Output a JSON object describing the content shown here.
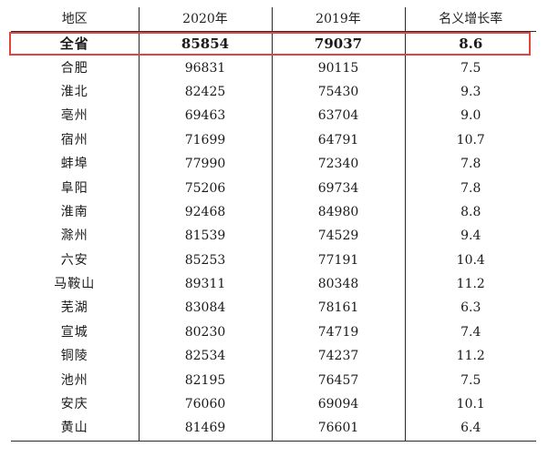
{
  "table": {
    "headers": [
      "地区",
      "2020年",
      "2019年",
      "名义增长率"
    ],
    "rows": [
      [
        "全省",
        "85854",
        "79037",
        "8.6"
      ],
      [
        "合肥",
        "96831",
        "90115",
        "7.5"
      ],
      [
        "淮北",
        "82425",
        "75430",
        "9.3"
      ],
      [
        "亳州",
        "69463",
        "63704",
        "9.0"
      ],
      [
        "宿州",
        "71699",
        "64791",
        "10.7"
      ],
      [
        "蚌埠",
        "77990",
        "72340",
        "7.8"
      ],
      [
        "阜阳",
        "75206",
        "69734",
        "7.8"
      ],
      [
        "淮南",
        "92468",
        "84980",
        "8.8"
      ],
      [
        "滁州",
        "81539",
        "74529",
        "9.4"
      ],
      [
        "六安",
        "85253",
        "77191",
        "10.4"
      ],
      [
        "马鞍山",
        "89311",
        "80348",
        "11.2"
      ],
      [
        "芜湖",
        "83084",
        "78161",
        "6.3"
      ],
      [
        "宣城",
        "80230",
        "74719",
        "7.4"
      ],
      [
        "铜陵",
        "82534",
        "74237",
        "11.2"
      ],
      [
        "池州",
        "82195",
        "76457",
        "7.5"
      ],
      [
        "安庆",
        "76060",
        "69094",
        "10.1"
      ],
      [
        "黄山",
        "81469",
        "76601",
        "6.4"
      ]
    ]
  },
  "highlight": {
    "row_label": "全省",
    "color": "#e0443e"
  }
}
